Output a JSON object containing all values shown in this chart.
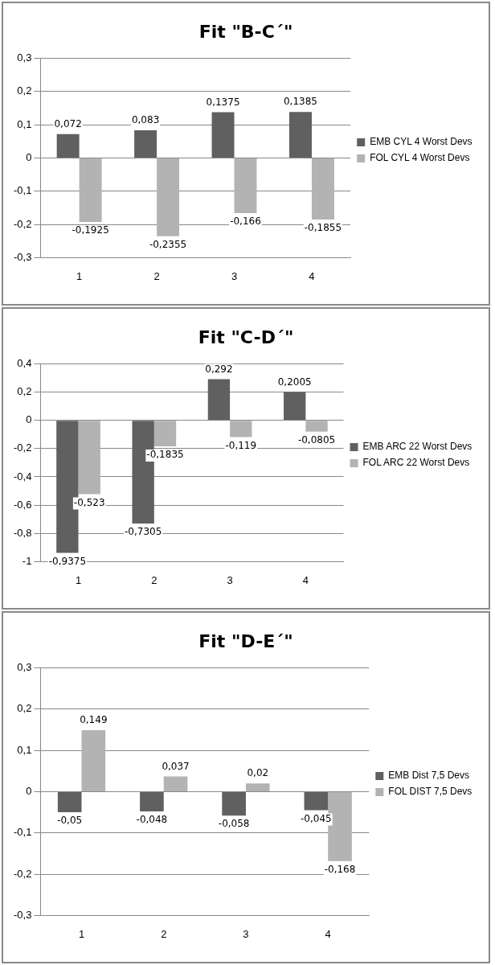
{
  "chart_data": [
    {
      "type": "bar",
      "title": "Fit \"B-C´\"",
      "categories": [
        "1",
        "2",
        "3",
        "4"
      ],
      "series": [
        {
          "name": "EMB CYL 4 Worst Devs",
          "color": "#606060",
          "values": [
            0.072,
            0.083,
            0.1375,
            0.1385
          ],
          "value_labels": [
            "0,072",
            "0,083",
            "0,1375",
            "0,1385"
          ]
        },
        {
          "name": "FOL CYL 4 Worst Devs",
          "color": "#b3b3b3",
          "values": [
            -0.1925,
            -0.2355,
            -0.166,
            -0.1855
          ],
          "value_labels": [
            "-0,1925",
            "-0,2355",
            "-0,166",
            "-0,1855"
          ]
        }
      ],
      "ylim": [
        -0.3,
        0.3
      ],
      "yticks": [
        {
          "value": -0.3,
          "label": "-0,3"
        },
        {
          "value": -0.2,
          "label": "-0,2"
        },
        {
          "value": -0.1,
          "label": "-0,1"
        },
        {
          "value": 0,
          "label": "0"
        },
        {
          "value": 0.1,
          "label": "0,1"
        },
        {
          "value": 0.2,
          "label": "0,2"
        },
        {
          "value": 0.3,
          "label": "0,3"
        }
      ],
      "grid": "y",
      "legend": "right"
    },
    {
      "type": "bar",
      "title": "Fit \"C-D´\"",
      "categories": [
        "1",
        "2",
        "3",
        "4"
      ],
      "series": [
        {
          "name": "EMB ARC 22 Worst Devs",
          "color": "#606060",
          "values": [
            -0.9375,
            -0.7305,
            0.292,
            0.2005
          ],
          "value_labels": [
            "-0,9375",
            "-0,7305",
            "0,292",
            "0,2005"
          ]
        },
        {
          "name": "FOL ARC 22 Worst Devs",
          "color": "#b3b3b3",
          "values": [
            -0.523,
            -0.1835,
            -0.119,
            -0.0805
          ],
          "value_labels": [
            "-0,523",
            "-0,1835",
            "-0,119",
            "-0,0805"
          ]
        }
      ],
      "ylim": [
        -1,
        0.4
      ],
      "yticks": [
        {
          "value": -1,
          "label": "-1"
        },
        {
          "value": -0.8,
          "label": "-0,8"
        },
        {
          "value": -0.6,
          "label": "-0,6"
        },
        {
          "value": -0.4,
          "label": "-0,4"
        },
        {
          "value": -0.2,
          "label": "-0,2"
        },
        {
          "value": 0,
          "label": "0"
        },
        {
          "value": 0.2,
          "label": "0,2"
        },
        {
          "value": 0.4,
          "label": "0,4"
        }
      ],
      "grid": "y",
      "legend": "right"
    },
    {
      "type": "bar",
      "title": "Fit \"D-E´\"",
      "categories": [
        "1",
        "2",
        "3",
        "4"
      ],
      "series": [
        {
          "name": "EMB Dist 7,5 Devs",
          "color": "#606060",
          "values": [
            -0.05,
            -0.048,
            -0.058,
            -0.045
          ],
          "value_labels": [
            "-0,05",
            "-0,048",
            "-0,058",
            "-0,045"
          ]
        },
        {
          "name": "FOL DIST 7,5 Devs",
          "color": "#b3b3b3",
          "values": [
            0.149,
            0.037,
            0.02,
            -0.168
          ],
          "value_labels": [
            "0,149",
            "0,037",
            "0,02",
            "-0,168"
          ]
        }
      ],
      "ylim": [
        -0.3,
        0.3
      ],
      "yticks": [
        {
          "value": -0.3,
          "label": "-0,3"
        },
        {
          "value": -0.2,
          "label": "-0,2"
        },
        {
          "value": -0.1,
          "label": "-0,1"
        },
        {
          "value": 0,
          "label": "0"
        },
        {
          "value": 0.1,
          "label": "0,1"
        },
        {
          "value": 0.2,
          "label": "0,2"
        },
        {
          "value": 0.3,
          "label": "0,3"
        }
      ],
      "grid": "y",
      "legend": "right"
    }
  ]
}
